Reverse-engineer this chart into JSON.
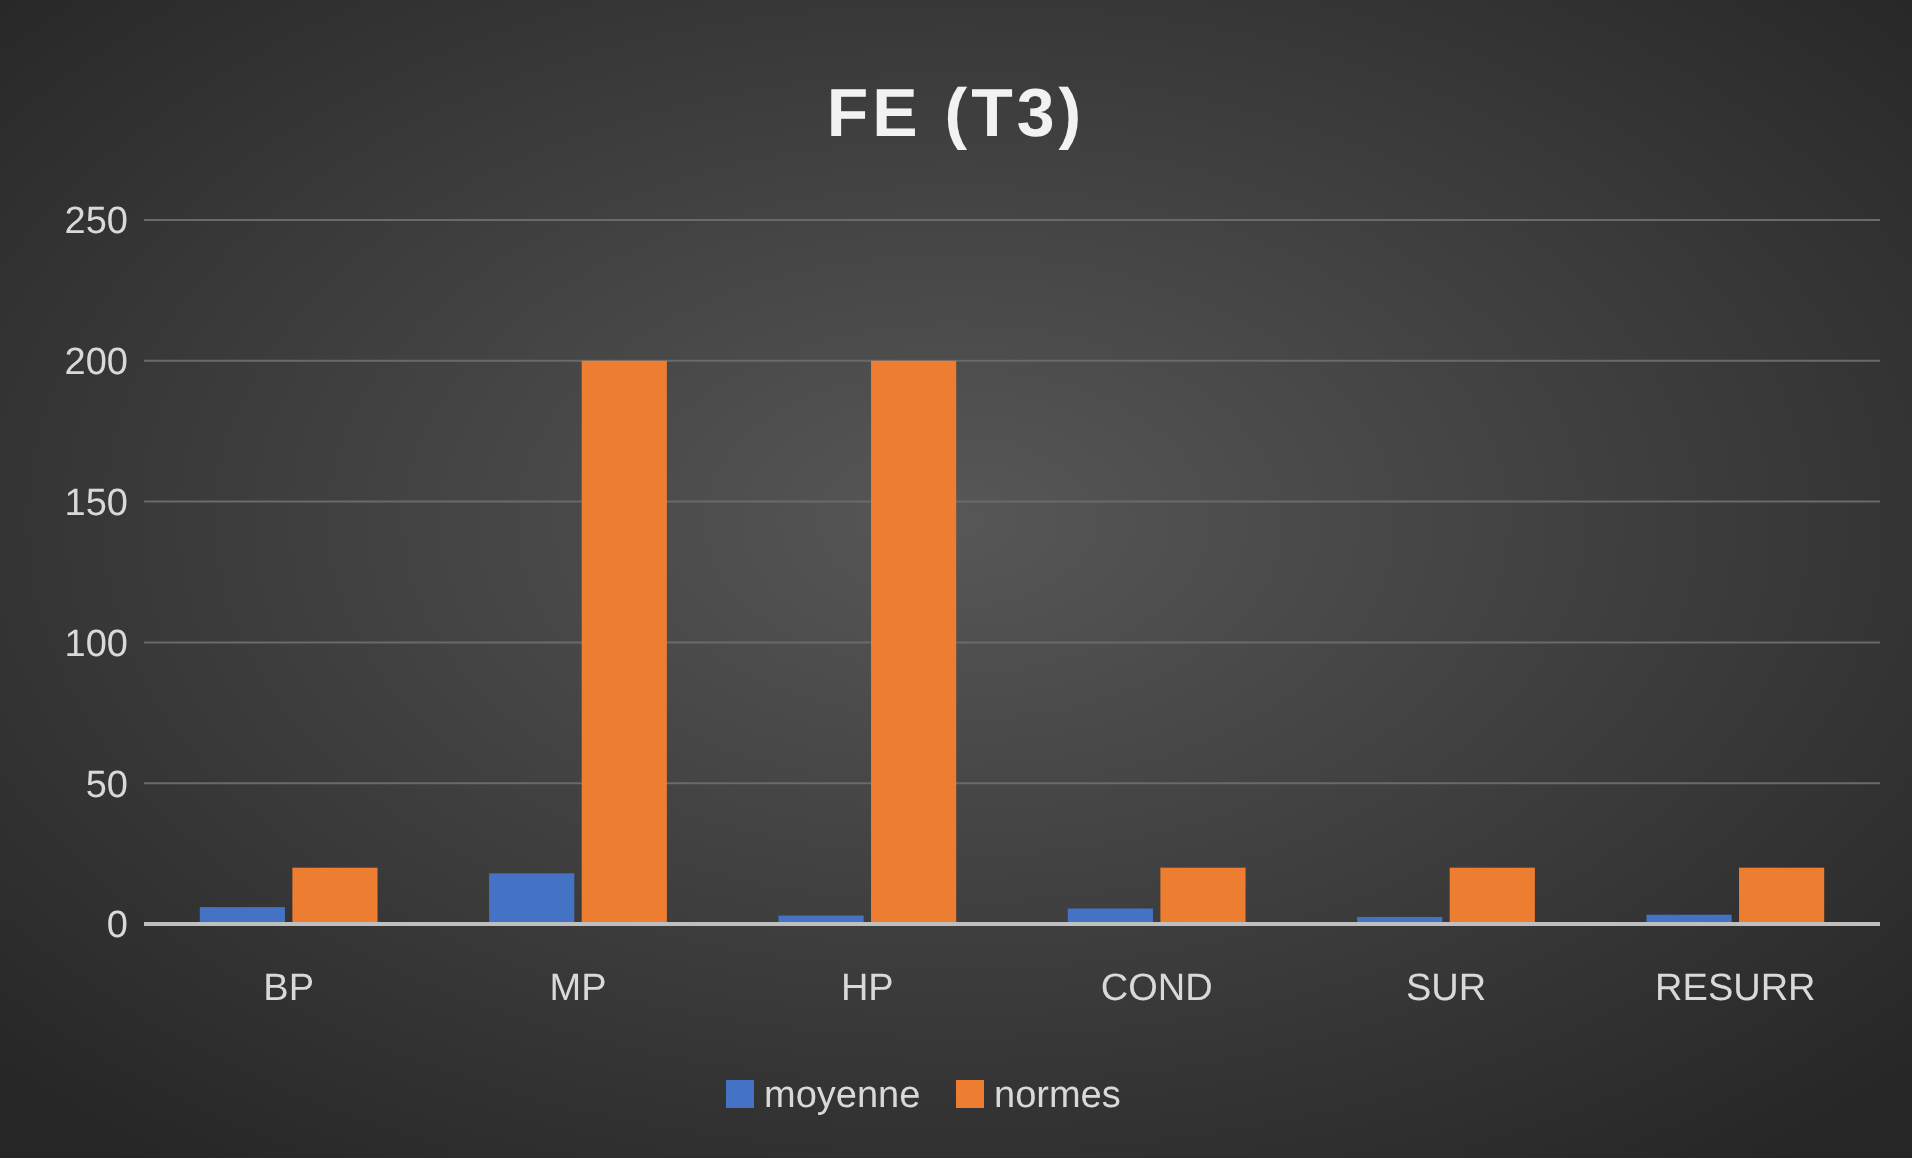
{
  "chart_data": {
    "type": "bar",
    "title": "FE (T3)",
    "categories": [
      "BP",
      "MP",
      "HP",
      "COND",
      "SUR",
      "RESURR"
    ],
    "series": [
      {
        "name": "moyenne",
        "color": "#4472c4",
        "values": [
          6,
          18,
          3,
          5.5,
          2.5,
          3.3
        ]
      },
      {
        "name": "normes",
        "color": "#ed7d31",
        "values": [
          20,
          200,
          200,
          20,
          20,
          20
        ]
      }
    ],
    "ylim": [
      0,
      250
    ],
    "yticks": [
      0,
      50,
      100,
      150,
      200,
      250
    ],
    "grid": "y",
    "legend": "bottom"
  }
}
